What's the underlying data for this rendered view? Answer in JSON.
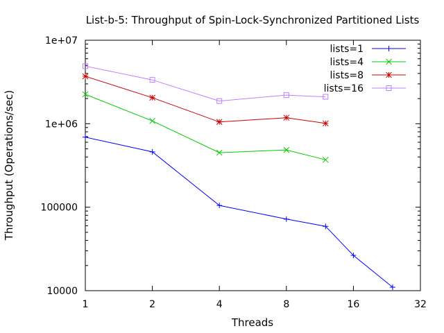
{
  "chart_data": {
    "type": "line",
    "title": "List-b-5: Throughput of Spin-Lock-Synchronized Partitioned Lists",
    "xlabel": "Threads",
    "ylabel": "Throughput (Operations/sec)",
    "x_scale": "log2",
    "y_scale": "log10",
    "xlim": [
      1,
      32
    ],
    "ylim": [
      10000,
      10000000
    ],
    "x_ticks": [
      {
        "value": 1,
        "label": "1"
      },
      {
        "value": 2,
        "label": "2"
      },
      {
        "value": 4,
        "label": "4"
      },
      {
        "value": 8,
        "label": "8"
      },
      {
        "value": 16,
        "label": "16"
      },
      {
        "value": 32,
        "label": "32"
      }
    ],
    "y_ticks": [
      {
        "value": 10000,
        "label": "10000"
      },
      {
        "value": 100000,
        "label": "100000"
      },
      {
        "value": 1000000,
        "label": "1e+06"
      },
      {
        "value": 10000000,
        "label": "1e+07"
      }
    ],
    "grid": false,
    "legend_position": "top-right",
    "series": [
      {
        "name": "lists=1",
        "color": "#0000ff",
        "marker": "plus",
        "x": [
          1,
          2,
          4,
          8,
          12,
          16,
          24
        ],
        "y": [
          690000,
          460000,
          105000,
          72000,
          59000,
          26500,
          11000
        ]
      },
      {
        "name": "lists=4",
        "color": "#00cc00",
        "marker": "cross",
        "x": [
          1,
          2,
          4,
          8,
          12
        ],
        "y": [
          2250000,
          1080000,
          450000,
          485000,
          370000
        ]
      },
      {
        "name": "lists=8",
        "color": "#cc0000",
        "marker": "star",
        "x": [
          1,
          2,
          4,
          8,
          12
        ],
        "y": [
          3700000,
          2050000,
          1050000,
          1180000,
          1010000
        ]
      },
      {
        "name": "lists=16",
        "color": "#bf7fff",
        "marker": "square",
        "x": [
          1,
          2,
          4,
          8,
          12
        ],
        "y": [
          4900000,
          3350000,
          1870000,
          2200000,
          2100000
        ]
      }
    ]
  }
}
